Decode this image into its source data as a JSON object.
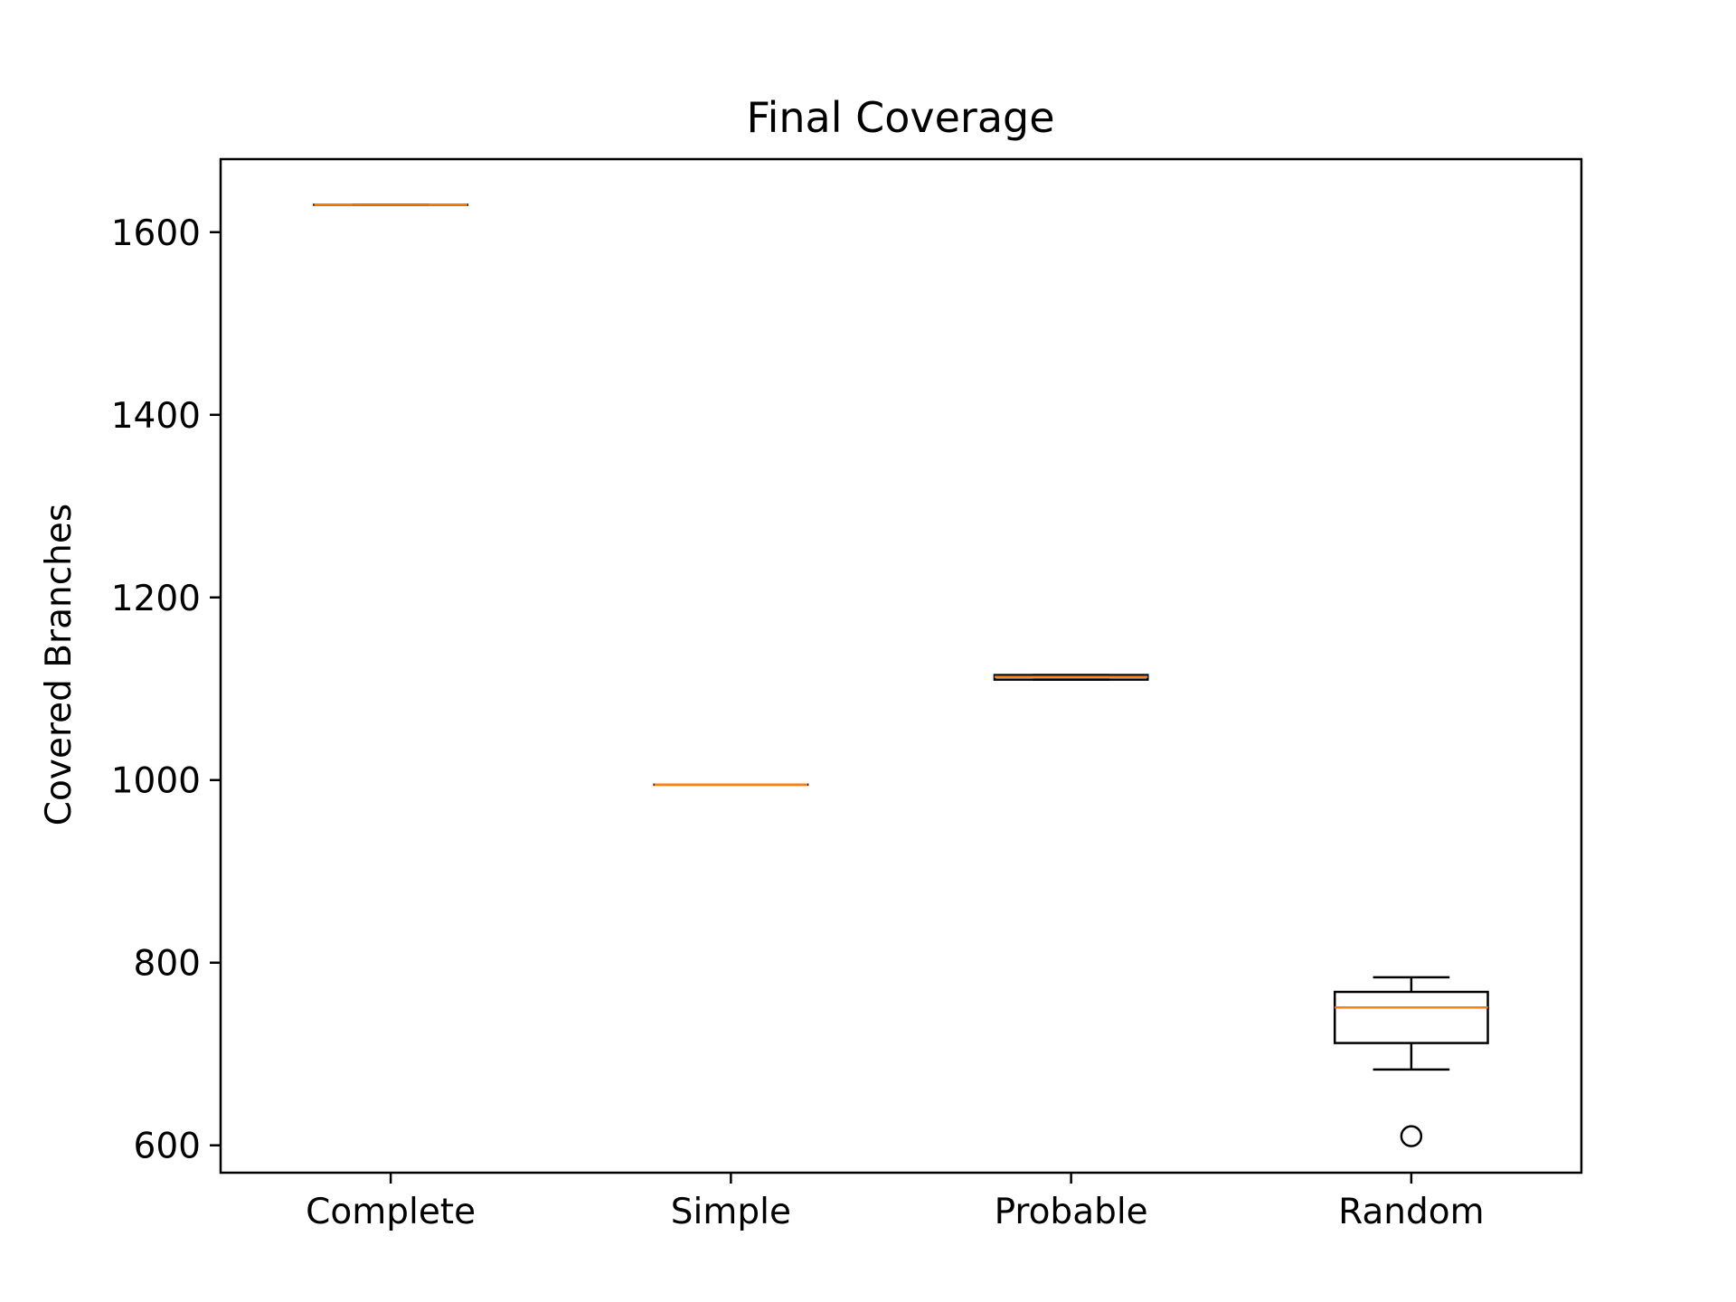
{
  "chart_data": {
    "type": "box",
    "title": "Final Coverage",
    "xlabel": "",
    "ylabel": "Covered Branches",
    "ylim": [
      570,
      1680
    ],
    "yticks": [
      600,
      800,
      1000,
      1200,
      1400,
      1600
    ],
    "ytick_labels": [
      "600",
      "800",
      "1000",
      "1200",
      "1400",
      "1600"
    ],
    "categories": [
      "Complete",
      "Simple",
      "Probable",
      "Random"
    ],
    "boxes": [
      {
        "category": "Complete",
        "whisker_low": 1630,
        "q1": 1630,
        "median": 1630,
        "q3": 1630,
        "whisker_high": 1630,
        "outliers": []
      },
      {
        "category": "Simple",
        "whisker_low": 995,
        "q1": 995,
        "median": 995,
        "q3": 995,
        "whisker_high": 995,
        "outliers": []
      },
      {
        "category": "Probable",
        "whisker_low": 1110,
        "q1": 1110,
        "median": 1113,
        "q3": 1115,
        "whisker_high": 1115,
        "outliers": []
      },
      {
        "category": "Random",
        "whisker_low": 683,
        "q1": 712,
        "median": 751,
        "q3": 768,
        "whisker_high": 784,
        "outliers": [
          610
        ]
      }
    ],
    "grid": false,
    "colors": {
      "box": "#000000",
      "median": "#ff7f0e",
      "background": "#ffffff"
    }
  }
}
